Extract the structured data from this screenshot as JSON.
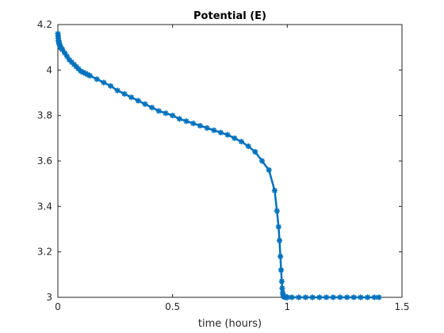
{
  "chart_data": {
    "type": "line",
    "title": "Potential (E)",
    "xlabel": "time (hours)",
    "ylabel": "",
    "xlim": [
      0,
      1.5
    ],
    "ylim": [
      3,
      4.2
    ],
    "xticks": [
      "0",
      "0.5",
      "1",
      "1.5"
    ],
    "yticks": [
      "3",
      "3.2",
      "3.4",
      "3.6",
      "3.8",
      "4",
      "4.2"
    ],
    "grid": false,
    "legend": "none",
    "marker": "asterisk",
    "series": [
      {
        "color": "#0072BD",
        "x": [
          0,
          0.001,
          0.002,
          0.003,
          0.004,
          0.005,
          0.006,
          0.008,
          0.01,
          0.012,
          0.015,
          0.02,
          0.03,
          0.04,
          0.05,
          0.06,
          0.07,
          0.08,
          0.09,
          0.1,
          0.11,
          0.12,
          0.13,
          0.14,
          0.17,
          0.2,
          0.23,
          0.26,
          0.29,
          0.32,
          0.35,
          0.38,
          0.41,
          0.44,
          0.47,
          0.5,
          0.53,
          0.56,
          0.59,
          0.62,
          0.65,
          0.68,
          0.71,
          0.74,
          0.77,
          0.8,
          0.83,
          0.86,
          0.89,
          0.92,
          0.945,
          0.955,
          0.962,
          0.966,
          0.97,
          0.973,
          0.976,
          0.978,
          0.98,
          0.982,
          0.984,
          0.986,
          0.988,
          0.99,
          0.995,
          1.0,
          1.02,
          1.05,
          1.08,
          1.11,
          1.14,
          1.17,
          1.2,
          1.23,
          1.26,
          1.29,
          1.32,
          1.35,
          1.38,
          1.4
        ],
        "y": [
          4.16,
          4.15,
          4.14,
          4.13,
          4.125,
          4.12,
          4.115,
          4.11,
          4.105,
          4.1,
          4.095,
          4.09,
          4.075,
          4.06,
          4.045,
          4.035,
          4.025,
          4.015,
          4.005,
          3.995,
          3.99,
          3.985,
          3.98,
          3.975,
          3.96,
          3.945,
          3.93,
          3.91,
          3.895,
          3.88,
          3.865,
          3.85,
          3.835,
          3.82,
          3.81,
          3.8,
          3.785,
          3.775,
          3.765,
          3.755,
          3.745,
          3.735,
          3.725,
          3.715,
          3.7,
          3.685,
          3.665,
          3.64,
          3.6,
          3.56,
          3.47,
          3.38,
          3.31,
          3.25,
          3.18,
          3.12,
          3.07,
          3.04,
          3.02,
          3.01,
          3.005,
          3.003,
          3.002,
          3.001,
          3.0,
          3.0,
          3.0,
          3.0,
          3.0,
          3.0,
          3.0,
          3.0,
          3.0,
          3.0,
          3.0,
          3.0,
          3.0,
          3.0,
          3.0,
          3.0
        ]
      }
    ]
  }
}
